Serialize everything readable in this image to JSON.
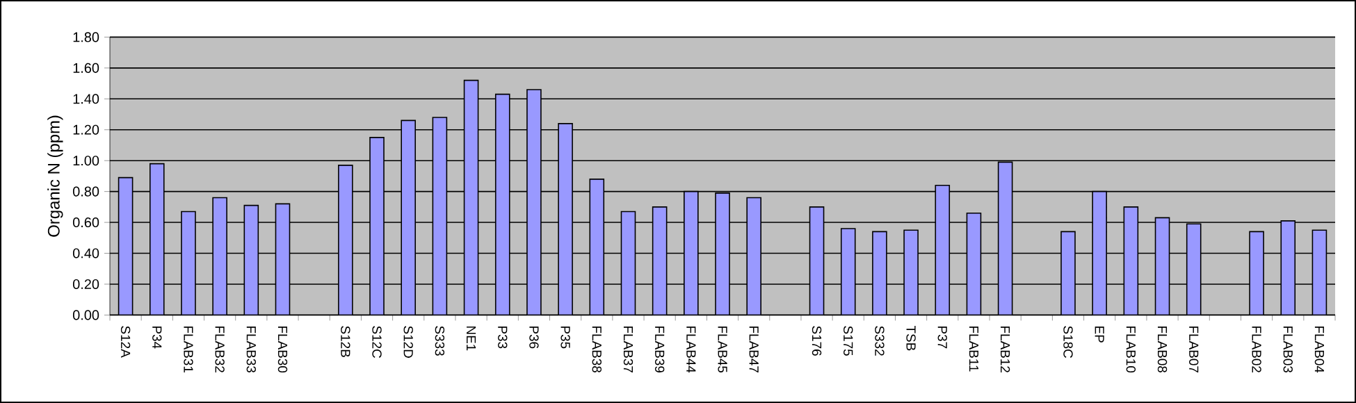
{
  "chart_data": {
    "type": "bar",
    "ylabel": "Organic N (ppm)",
    "categories": [
      "S12A",
      "P34",
      "FLAB31",
      "FLAB32",
      "FLAB33",
      "FLAB30",
      null,
      "S12B",
      "S12C",
      "S12D",
      "S333",
      "NE1",
      "P33",
      "P36",
      "P35",
      "FLAB38",
      "FLAB37",
      "FLAB39",
      "FLAB44",
      "FLAB45",
      "FLAB47",
      null,
      "S176",
      "S175",
      "S332",
      "TSB",
      "P37",
      "FLAB11",
      "FLAB12",
      null,
      "S18C",
      "EP",
      "FLAB10",
      "FLAB08",
      "FLAB07",
      null,
      "FLAB02",
      "FLAB03",
      "FLAB04"
    ],
    "values": [
      0.89,
      0.98,
      0.67,
      0.76,
      0.71,
      0.72,
      null,
      0.97,
      1.15,
      1.26,
      1.28,
      1.52,
      1.43,
      1.46,
      1.24,
      0.88,
      0.67,
      0.7,
      0.8,
      0.79,
      0.76,
      null,
      0.7,
      0.56,
      0.54,
      0.55,
      0.84,
      0.66,
      0.99,
      null,
      0.54,
      0.8,
      0.7,
      0.63,
      0.59,
      null,
      0.54,
      0.61,
      0.55
    ],
    "color": "#9999ff",
    "ylim": [
      0,
      1.8
    ],
    "yticks": [
      {
        "value": 0,
        "label": "0.00"
      },
      {
        "value": 0.2,
        "label": "0.20"
      },
      {
        "value": 0.4,
        "label": "0.40"
      },
      {
        "value": 0.6,
        "label": "0.60"
      },
      {
        "value": 0.8,
        "label": "0.80"
      },
      {
        "value": 1.0,
        "label": "1.00"
      },
      {
        "value": 1.2,
        "label": "1.20"
      },
      {
        "value": 1.4,
        "label": "1.40"
      },
      {
        "value": 1.6,
        "label": "1.60"
      },
      {
        "value": 1.8,
        "label": "1.80"
      }
    ],
    "grid": "y"
  }
}
